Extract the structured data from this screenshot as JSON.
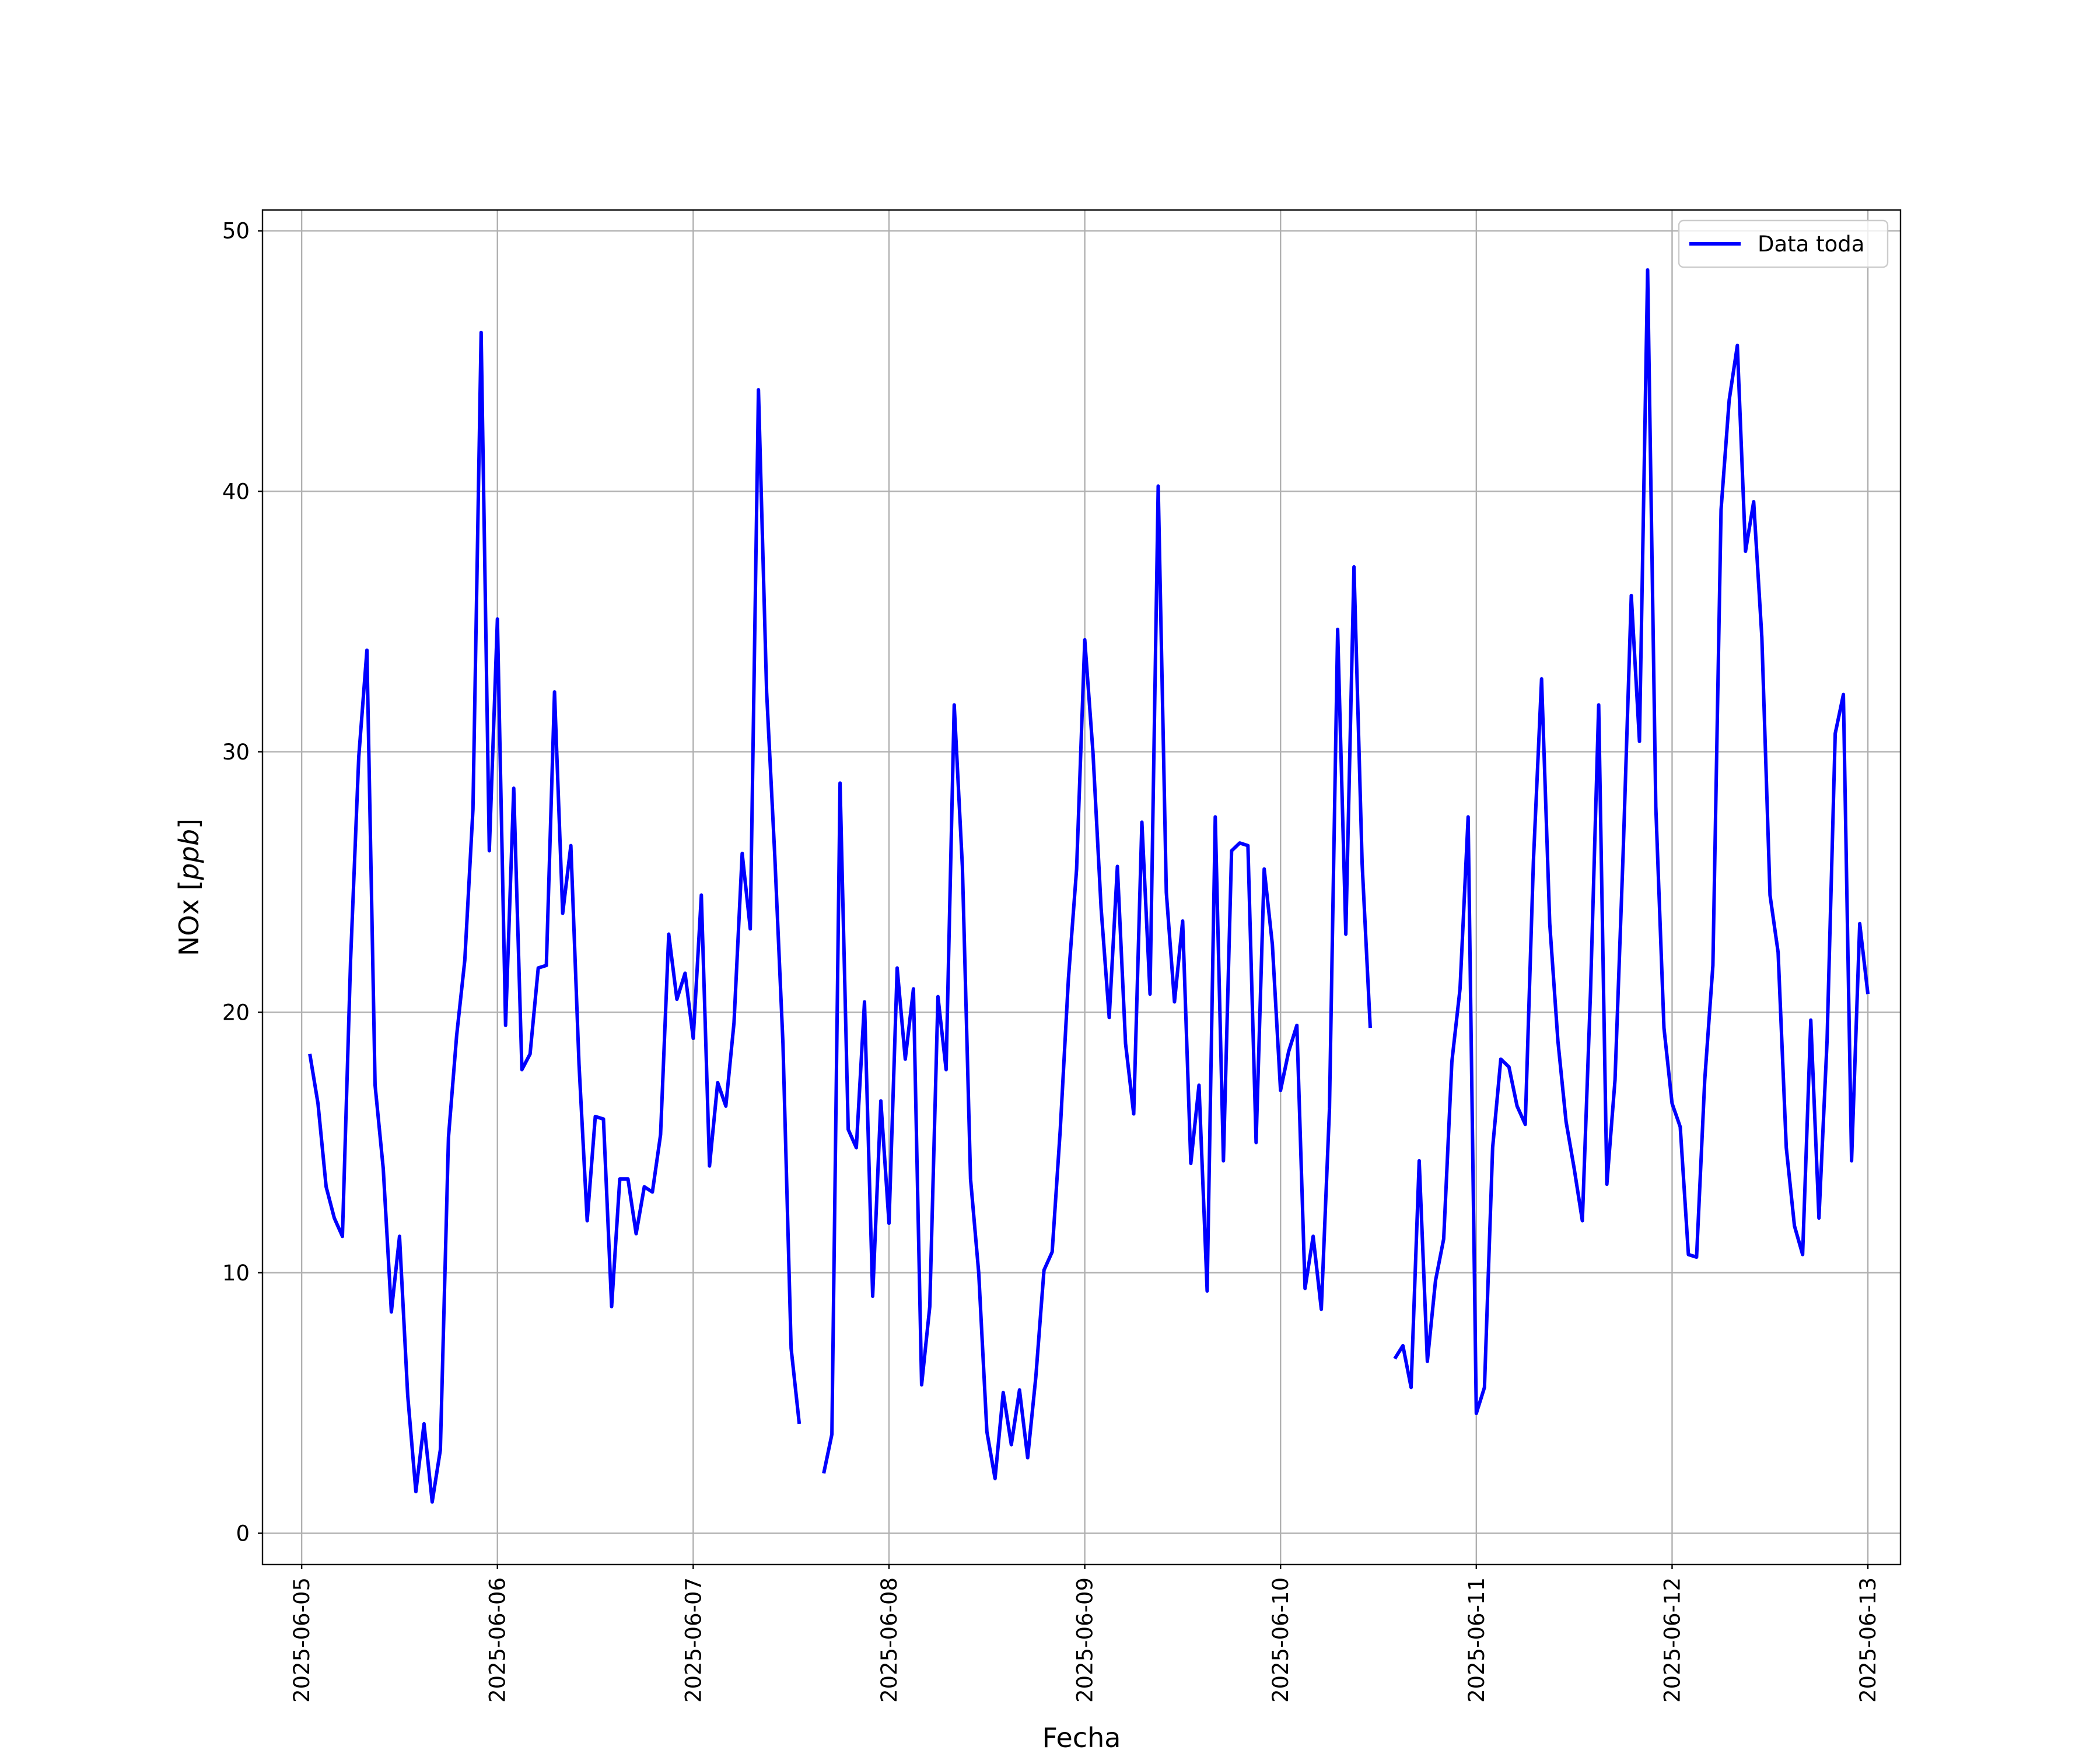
{
  "chart_data": {
    "type": "line",
    "xlabel": "Fecha",
    "ylabel_main": "NOx [",
    "ylabel_unit": "ppb",
    "ylabel_close": "]",
    "x_tick_labels": [
      "2025-06-05",
      "2025-06-06",
      "2025-06-07",
      "2025-06-08",
      "2025-06-09",
      "2025-06-10",
      "2025-06-11",
      "2025-06-12",
      "2025-06-13"
    ],
    "y_ticks": [
      0,
      10,
      20,
      30,
      40,
      50
    ],
    "xlim": [
      "2025-06-04T19:12",
      "2025-06-13T04:00"
    ],
    "ylim": [
      -1.2,
      50.8
    ],
    "grid": true,
    "legend_position": "top-right",
    "series": [
      {
        "name": "Data toda",
        "color": "#0000ff",
        "segments": [
          [
            [
              "2025-06-05T01:00",
              18.4
            ],
            [
              "2025-06-05T02:00",
              16.5
            ],
            [
              "2025-06-05T03:00",
              13.3
            ],
            [
              "2025-06-05T04:00",
              12.1
            ],
            [
              "2025-06-05T05:00",
              11.4
            ],
            [
              "2025-06-05T06:00",
              22.0
            ],
            [
              "2025-06-05T07:00",
              29.8
            ],
            [
              "2025-06-05T08:00",
              33.9
            ],
            [
              "2025-06-05T09:00",
              17.2
            ],
            [
              "2025-06-05T10:00",
              14.0
            ],
            [
              "2025-06-05T11:00",
              8.5
            ],
            [
              "2025-06-05T12:00",
              11.4
            ],
            [
              "2025-06-05T13:00",
              5.3
            ],
            [
              "2025-06-05T14:00",
              1.6
            ],
            [
              "2025-06-05T15:00",
              4.2
            ],
            [
              "2025-06-05T16:00",
              1.2
            ],
            [
              "2025-06-05T17:00",
              3.2
            ],
            [
              "2025-06-05T18:00",
              15.2
            ],
            [
              "2025-06-05T19:00",
              19.1
            ],
            [
              "2025-06-05T20:00",
              22.0
            ],
            [
              "2025-06-05T21:00",
              27.8
            ],
            [
              "2025-06-05T22:00",
              46.1
            ],
            [
              "2025-06-05T23:00",
              26.2
            ],
            [
              "2025-06-06T00:00",
              35.1
            ],
            [
              "2025-06-06T01:00",
              19.5
            ],
            [
              "2025-06-06T02:00",
              28.6
            ],
            [
              "2025-06-06T03:00",
              17.8
            ],
            [
              "2025-06-06T04:00",
              18.4
            ],
            [
              "2025-06-06T05:00",
              21.7
            ],
            [
              "2025-06-06T06:00",
              21.8
            ],
            [
              "2025-06-06T07:00",
              32.3
            ],
            [
              "2025-06-06T08:00",
              23.8
            ],
            [
              "2025-06-06T09:00",
              26.4
            ],
            [
              "2025-06-06T10:00",
              18.0
            ],
            [
              "2025-06-06T11:00",
              12.0
            ],
            [
              "2025-06-06T12:00",
              16.0
            ],
            [
              "2025-06-06T13:00",
              15.9
            ],
            [
              "2025-06-06T14:00",
              8.7
            ],
            [
              "2025-06-06T15:00",
              13.6
            ],
            [
              "2025-06-06T16:00",
              13.6
            ],
            [
              "2025-06-06T17:00",
              11.5
            ],
            [
              "2025-06-06T18:00",
              13.3
            ],
            [
              "2025-06-06T19:00",
              13.1
            ],
            [
              "2025-06-06T20:00",
              15.3
            ],
            [
              "2025-06-06T21:00",
              23.0
            ],
            [
              "2025-06-06T22:00",
              20.5
            ],
            [
              "2025-06-06T23:00",
              21.5
            ],
            [
              "2025-06-07T00:00",
              19.0
            ],
            [
              "2025-06-07T01:00",
              24.5
            ],
            [
              "2025-06-07T02:00",
              14.1
            ],
            [
              "2025-06-07T03:00",
              17.3
            ],
            [
              "2025-06-07T04:00",
              16.4
            ],
            [
              "2025-06-07T05:00",
              19.6
            ],
            [
              "2025-06-07T06:00",
              26.1
            ],
            [
              "2025-06-07T07:00",
              23.2
            ],
            [
              "2025-06-07T08:00",
              43.9
            ],
            [
              "2025-06-07T09:00",
              32.3
            ],
            [
              "2025-06-07T10:00",
              26.0
            ],
            [
              "2025-06-07T11:00",
              18.8
            ],
            [
              "2025-06-07T12:00",
              7.1
            ],
            [
              "2025-06-07T13:00",
              4.2
            ]
          ],
          [
            [
              "2025-06-07T16:00",
              2.3
            ],
            [
              "2025-06-07T17:00",
              3.8
            ],
            [
              "2025-06-07T18:00",
              28.8
            ],
            [
              "2025-06-07T19:00",
              15.5
            ],
            [
              "2025-06-07T20:00",
              14.8
            ],
            [
              "2025-06-07T21:00",
              20.4
            ],
            [
              "2025-06-07T22:00",
              9.1
            ],
            [
              "2025-06-07T23:00",
              16.6
            ],
            [
              "2025-06-08T00:00",
              11.9
            ],
            [
              "2025-06-08T01:00",
              21.7
            ],
            [
              "2025-06-08T02:00",
              18.2
            ],
            [
              "2025-06-08T03:00",
              20.9
            ],
            [
              "2025-06-08T04:00",
              5.7
            ],
            [
              "2025-06-08T05:00",
              8.7
            ],
            [
              "2025-06-08T06:00",
              20.6
            ],
            [
              "2025-06-08T07:00",
              17.8
            ],
            [
              "2025-06-08T08:00",
              31.8
            ],
            [
              "2025-06-08T09:00",
              25.6
            ],
            [
              "2025-06-08T10:00",
              13.6
            ],
            [
              "2025-06-08T11:00",
              10.0
            ],
            [
              "2025-06-08T12:00",
              3.9
            ],
            [
              "2025-06-08T13:00",
              2.1
            ],
            [
              "2025-06-08T14:00",
              5.4
            ],
            [
              "2025-06-08T15:00",
              3.4
            ],
            [
              "2025-06-08T16:00",
              5.5
            ],
            [
              "2025-06-08T17:00",
              2.9
            ],
            [
              "2025-06-08T18:00",
              6.0
            ],
            [
              "2025-06-08T19:00",
              10.1
            ],
            [
              "2025-06-08T20:00",
              10.8
            ],
            [
              "2025-06-08T21:00",
              15.5
            ],
            [
              "2025-06-08T22:00",
              21.3
            ],
            [
              "2025-06-08T23:00",
              25.5
            ],
            [
              "2025-06-09T00:00",
              34.3
            ],
            [
              "2025-06-09T01:00",
              30.0
            ],
            [
              "2025-06-09T02:00",
              24.0
            ],
            [
              "2025-06-09T03:00",
              19.8
            ],
            [
              "2025-06-09T04:00",
              25.6
            ],
            [
              "2025-06-09T05:00",
              18.8
            ],
            [
              "2025-06-09T06:00",
              16.1
            ],
            [
              "2025-06-09T07:00",
              27.3
            ],
            [
              "2025-06-09T08:00",
              20.7
            ],
            [
              "2025-06-09T09:00",
              40.2
            ],
            [
              "2025-06-09T10:00",
              24.6
            ],
            [
              "2025-06-09T11:00",
              20.4
            ],
            [
              "2025-06-09T12:00",
              23.5
            ],
            [
              "2025-06-09T13:00",
              14.2
            ],
            [
              "2025-06-09T14:00",
              17.2
            ],
            [
              "2025-06-09T15:00",
              9.3
            ],
            [
              "2025-06-09T16:00",
              27.5
            ],
            [
              "2025-06-09T17:00",
              14.3
            ],
            [
              "2025-06-09T18:00",
              26.2
            ],
            [
              "2025-06-09T19:00",
              26.5
            ],
            [
              "2025-06-09T20:00",
              26.4
            ],
            [
              "2025-06-09T21:00",
              15.0
            ],
            [
              "2025-06-09T22:00",
              25.5
            ],
            [
              "2025-06-09T23:00",
              22.6
            ],
            [
              "2025-06-10T00:00",
              17.0
            ],
            [
              "2025-06-10T01:00",
              18.5
            ],
            [
              "2025-06-10T02:00",
              19.5
            ],
            [
              "2025-06-10T03:00",
              9.4
            ],
            [
              "2025-06-10T04:00",
              11.4
            ],
            [
              "2025-06-10T05:00",
              8.6
            ],
            [
              "2025-06-10T06:00",
              16.3
            ],
            [
              "2025-06-10T07:00",
              34.7
            ],
            [
              "2025-06-10T08:00",
              23.0
            ],
            [
              "2025-06-10T09:00",
              37.1
            ],
            [
              "2025-06-10T10:00",
              25.7
            ],
            [
              "2025-06-10T11:00",
              19.4
            ]
          ],
          [
            [
              "2025-06-10T14:00",
              6.7
            ],
            [
              "2025-06-10T15:00",
              7.2
            ],
            [
              "2025-06-10T16:00",
              5.6
            ],
            [
              "2025-06-10T17:00",
              14.3
            ],
            [
              "2025-06-10T18:00",
              6.6
            ],
            [
              "2025-06-10T19:00",
              9.7
            ],
            [
              "2025-06-10T20:00",
              11.3
            ],
            [
              "2025-06-10T21:00",
              18.1
            ],
            [
              "2025-06-10T22:00",
              20.9
            ],
            [
              "2025-06-10T23:00",
              27.5
            ],
            [
              "2025-06-11T00:00",
              4.6
            ],
            [
              "2025-06-11T01:00",
              5.6
            ],
            [
              "2025-06-11T02:00",
              14.8
            ],
            [
              "2025-06-11T03:00",
              18.2
            ],
            [
              "2025-06-11T04:00",
              17.9
            ],
            [
              "2025-06-11T05:00",
              16.4
            ],
            [
              "2025-06-11T06:00",
              15.7
            ],
            [
              "2025-06-11T07:00",
              25.8
            ],
            [
              "2025-06-11T08:00",
              32.8
            ],
            [
              "2025-06-11T09:00",
              23.4
            ],
            [
              "2025-06-11T10:00",
              18.9
            ],
            [
              "2025-06-11T11:00",
              15.8
            ],
            [
              "2025-06-11T12:00",
              14.0
            ],
            [
              "2025-06-11T13:00",
              12.0
            ],
            [
              "2025-06-11T14:00",
              20.8
            ],
            [
              "2025-06-11T15:00",
              31.8
            ],
            [
              "2025-06-11T16:00",
              13.4
            ],
            [
              "2025-06-11T17:00",
              17.4
            ],
            [
              "2025-06-11T18:00",
              26.1
            ],
            [
              "2025-06-11T19:00",
              36.0
            ],
            [
              "2025-06-11T20:00",
              30.4
            ],
            [
              "2025-06-11T21:00",
              48.5
            ],
            [
              "2025-06-11T22:00",
              27.9
            ],
            [
              "2025-06-11T23:00",
              19.4
            ],
            [
              "2025-06-12T00:00",
              16.5
            ],
            [
              "2025-06-12T01:00",
              15.6
            ],
            [
              "2025-06-12T02:00",
              10.7
            ],
            [
              "2025-06-12T03:00",
              10.6
            ],
            [
              "2025-06-12T04:00",
              17.4
            ],
            [
              "2025-06-12T05:00",
              21.8
            ],
            [
              "2025-06-12T06:00",
              39.3
            ],
            [
              "2025-06-12T07:00",
              43.5
            ],
            [
              "2025-06-12T08:00",
              45.6
            ],
            [
              "2025-06-12T09:00",
              37.7
            ],
            [
              "2025-06-12T10:00",
              39.6
            ],
            [
              "2025-06-12T11:00",
              34.4
            ],
            [
              "2025-06-12T12:00",
              24.5
            ],
            [
              "2025-06-12T13:00",
              22.3
            ],
            [
              "2025-06-12T14:00",
              14.8
            ],
            [
              "2025-06-12T15:00",
              11.8
            ],
            [
              "2025-06-12T16:00",
              10.7
            ],
            [
              "2025-06-12T17:00",
              19.7
            ],
            [
              "2025-06-12T18:00",
              12.1
            ],
            [
              "2025-06-12T19:00",
              18.9
            ],
            [
              "2025-06-12T20:00",
              30.7
            ],
            [
              "2025-06-12T21:00",
              32.2
            ],
            [
              "2025-06-12T22:00",
              14.3
            ],
            [
              "2025-06-12T23:00",
              23.4
            ],
            [
              "2025-06-13T00:00",
              20.7
            ]
          ]
        ]
      }
    ]
  }
}
